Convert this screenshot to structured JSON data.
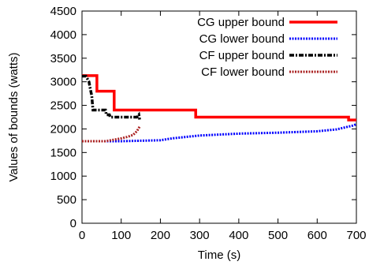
{
  "chart_data": {
    "type": "line",
    "xlabel": "Time (s)",
    "ylabel": "Values of bounds (watts)",
    "xlim": [
      0,
      700
    ],
    "ylim": [
      0,
      4500
    ],
    "xticks": [
      "0",
      "100",
      "200",
      "300",
      "400",
      "500",
      "600",
      "700"
    ],
    "yticks": [
      "0",
      "500",
      "1000",
      "1500",
      "2000",
      "2500",
      "3000",
      "3500",
      "4000",
      "4500"
    ],
    "grid": false,
    "legend_position": "top-right",
    "series": [
      {
        "name": "CG upper bound",
        "color": "#ff0000",
        "style": "solid",
        "x": [
          0,
          38,
          38,
          70,
          70,
          82,
          82,
          280,
          280,
          290,
          290,
          680,
          680,
          700
        ],
        "y": [
          3130,
          3130,
          2800,
          2800,
          2800,
          2800,
          2400,
          2400,
          2400,
          2400,
          2250,
          2250,
          2190,
          2190
        ]
      },
      {
        "name": "CG lower bound",
        "color": "#0000ff",
        "style": "dotted",
        "x": [
          0,
          100,
          200,
          230,
          300,
          400,
          500,
          600,
          650,
          690,
          700
        ],
        "y": [
          1740,
          1740,
          1760,
          1800,
          1860,
          1900,
          1920,
          1950,
          1990,
          2070,
          2100
        ]
      },
      {
        "name": "CF upper bound",
        "color": "#000000",
        "style": "dash-dot",
        "x": [
          0,
          10,
          18,
          20,
          25,
          28,
          40,
          60,
          62,
          70,
          72,
          140,
          145,
          147
        ],
        "y": [
          3120,
          3120,
          3000,
          2900,
          2700,
          2400,
          2400,
          2400,
          2300,
          2300,
          2250,
          2250,
          2300,
          2200
        ]
      },
      {
        "name": "CF lower bound",
        "color": "#aa2222",
        "style": "dotted",
        "x": [
          0,
          60,
          80,
          100,
          115,
          130,
          140,
          147
        ],
        "y": [
          1740,
          1740,
          1770,
          1800,
          1830,
          1870,
          1950,
          2050
        ]
      }
    ]
  }
}
